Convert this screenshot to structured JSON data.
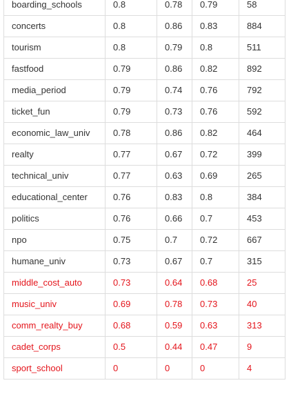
{
  "colors": {
    "text": "#333333",
    "highlight": "#e4141b",
    "border": "#dddddd"
  },
  "rows": [
    {
      "name": "boarding_schools",
      "v1": "0.8",
      "v2": "0.78",
      "v3": "0.79",
      "count": "58",
      "highlight": false
    },
    {
      "name": "concerts",
      "v1": "0.8",
      "v2": "0.86",
      "v3": "0.83",
      "count": "884",
      "highlight": false
    },
    {
      "name": "tourism",
      "v1": "0.8",
      "v2": "0.79",
      "v3": "0.8",
      "count": "511",
      "highlight": false
    },
    {
      "name": "fastfood",
      "v1": "0.79",
      "v2": "0.86",
      "v3": "0.82",
      "count": "892",
      "highlight": false
    },
    {
      "name": "media_period",
      "v1": "0.79",
      "v2": "0.74",
      "v3": "0.76",
      "count": "792",
      "highlight": false
    },
    {
      "name": "ticket_fun",
      "v1": "0.79",
      "v2": "0.73",
      "v3": "0.76",
      "count": "592",
      "highlight": false
    },
    {
      "name": "economic_law_univ",
      "v1": "0.78",
      "v2": "0.86",
      "v3": "0.82",
      "count": "464",
      "highlight": false
    },
    {
      "name": "realty",
      "v1": "0.77",
      "v2": "0.67",
      "v3": "0.72",
      "count": "399",
      "highlight": false
    },
    {
      "name": "technical_univ",
      "v1": "0.77",
      "v2": "0.63",
      "v3": "0.69",
      "count": "265",
      "highlight": false
    },
    {
      "name": "educational_center",
      "v1": "0.76",
      "v2": "0.83",
      "v3": "0.8",
      "count": "384",
      "highlight": false
    },
    {
      "name": "politics",
      "v1": "0.76",
      "v2": "0.66",
      "v3": "0.7",
      "count": "453",
      "highlight": false
    },
    {
      "name": "npo",
      "v1": "0.75",
      "v2": "0.7",
      "v3": "0.72",
      "count": "667",
      "highlight": false
    },
    {
      "name": "humane_univ",
      "v1": "0.73",
      "v2": "0.67",
      "v3": "0.7",
      "count": "315",
      "highlight": false
    },
    {
      "name": "middle_cost_auto",
      "v1": "0.73",
      "v2": "0.64",
      "v3": "0.68",
      "count": "25",
      "highlight": true
    },
    {
      "name": "music_univ",
      "v1": "0.69",
      "v2": "0.78",
      "v3": "0.73",
      "count": "40",
      "highlight": true
    },
    {
      "name": "comm_realty_buy",
      "v1": "0.68",
      "v2": "0.59",
      "v3": "0.63",
      "count": "313",
      "highlight": true
    },
    {
      "name": "cadet_corps",
      "v1": "0.5",
      "v2": "0.44",
      "v3": "0.47",
      "count": "9",
      "highlight": true
    },
    {
      "name": "sport_school",
      "v1": "0",
      "v2": "0",
      "v3": "0",
      "count": "4",
      "highlight": true
    }
  ]
}
